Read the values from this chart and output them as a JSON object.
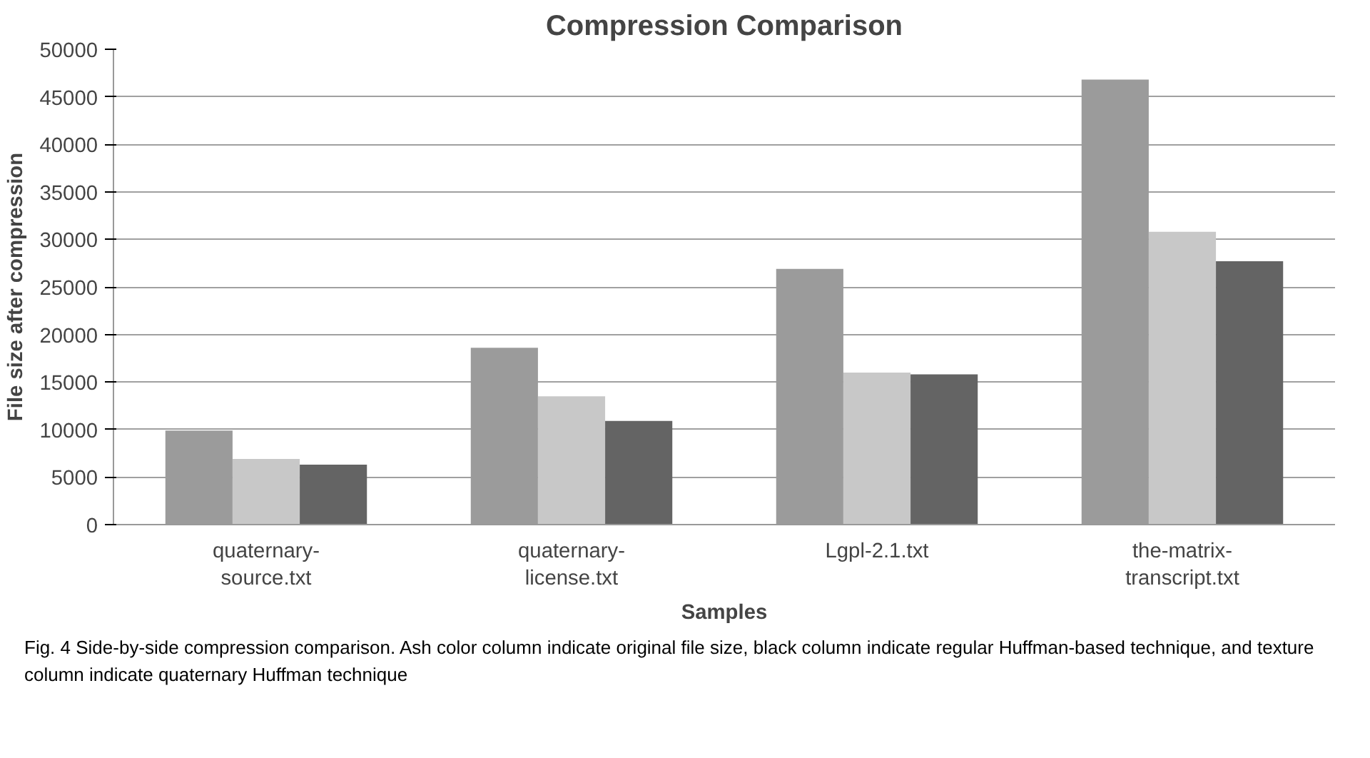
{
  "chart_data": {
    "type": "bar",
    "title": "Compression Comparison",
    "xlabel": "Samples",
    "ylabel": "File size after compression",
    "categories": [
      "quaternary-source.txt",
      "quaternary-license.txt",
      "Lgpl-2.1.txt",
      "the-matrix-transcript.txt"
    ],
    "series": [
      {
        "color": "#9b9b9b",
        "values": [
          9900,
          18600,
          26900,
          46800
        ]
      },
      {
        "color": "#c8c8c8",
        "values": [
          6900,
          13500,
          16000,
          30800
        ]
      },
      {
        "color": "#646464",
        "values": [
          6300,
          10900,
          15800,
          27700
        ]
      }
    ],
    "ylim": [
      0,
      50000
    ],
    "yticks": [
      0,
      5000,
      10000,
      15000,
      20000,
      25000,
      30000,
      35000,
      40000,
      45000,
      50000
    ],
    "grid": "y",
    "annotations": [
      "Fig. 4  Side-by-side compression comparison. Ash color column indicate original file size, black column indicate regular Huffman-based technique, and texture column indicate quaternary Huffman technique"
    ]
  }
}
